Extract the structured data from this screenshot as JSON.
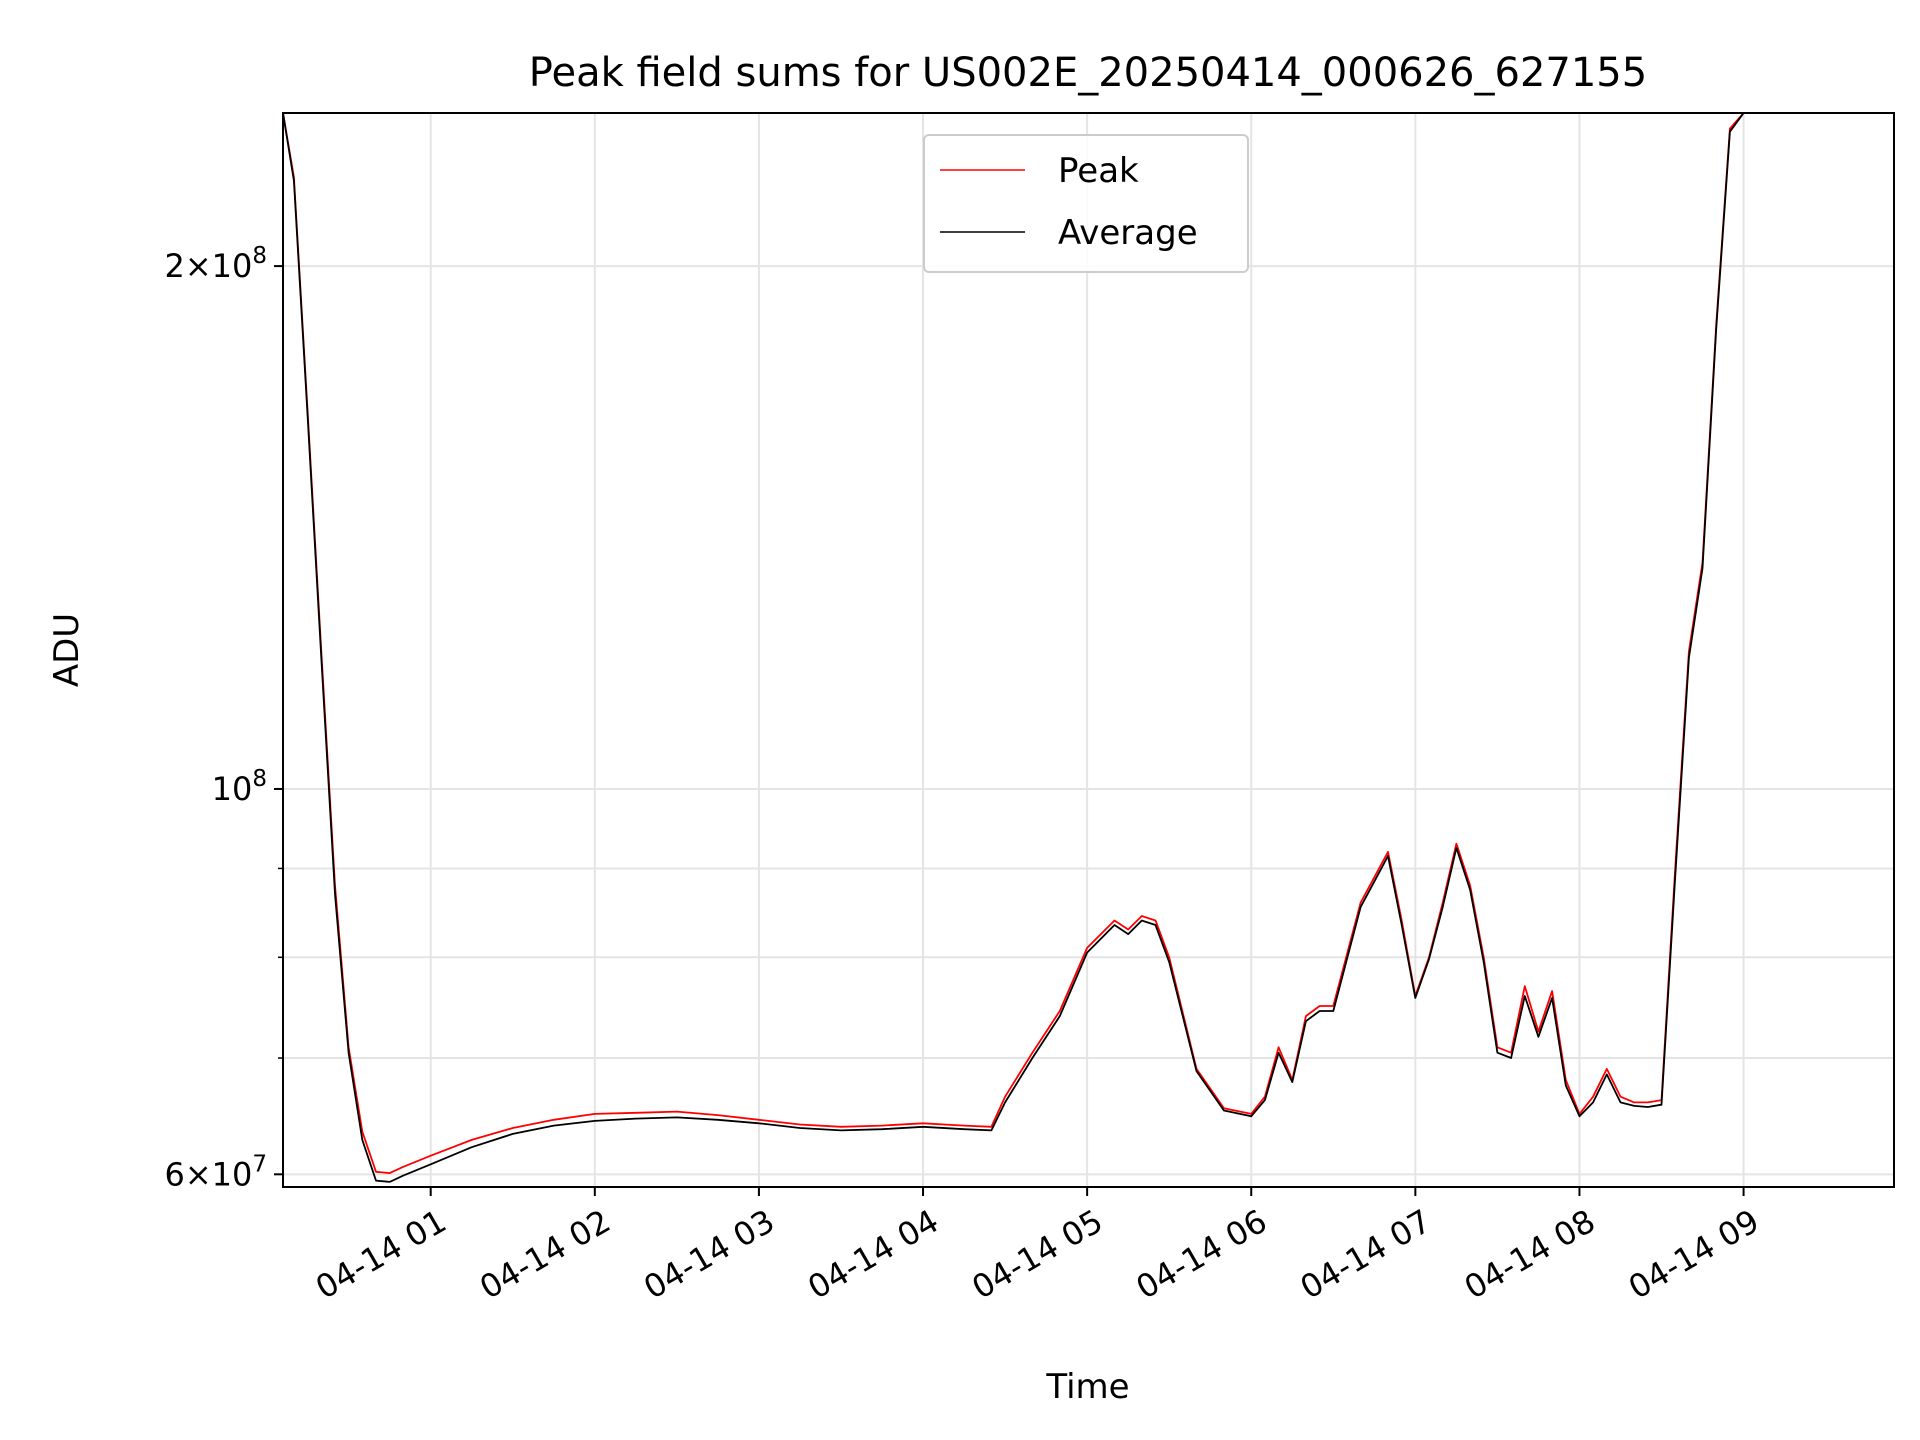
{
  "chart_data": {
    "type": "line",
    "title": "Peak field sums for US002E_20250414_000626_627155",
    "xlabel": "Time",
    "ylabel": "ADU",
    "x_range": [
      "2025-04-14T00:06",
      "2025-04-14T09:55"
    ],
    "ylim": [
      59000000,
      245000000
    ],
    "y_scale": "log",
    "grid": true,
    "legend": {
      "placement": "upper center",
      "entries": [
        "Peak",
        "Average"
      ]
    },
    "x_ticks": [
      {
        "t": "2025-04-14T01:00",
        "label": "04-14 01"
      },
      {
        "t": "2025-04-14T02:00",
        "label": "04-14 02"
      },
      {
        "t": "2025-04-14T03:00",
        "label": "04-14 03"
      },
      {
        "t": "2025-04-14T04:00",
        "label": "04-14 04"
      },
      {
        "t": "2025-04-14T05:00",
        "label": "04-14 05"
      },
      {
        "t": "2025-04-14T06:00",
        "label": "04-14 06"
      },
      {
        "t": "2025-04-14T07:00",
        "label": "04-14 07"
      },
      {
        "t": "2025-04-14T08:00",
        "label": "04-14 08"
      },
      {
        "t": "2025-04-14T09:00",
        "label": "04-14 09"
      }
    ],
    "y_ticks": [
      {
        "value": 60000000,
        "mantissa": "6",
        "exp": "7"
      },
      {
        "value": 100000000,
        "mantissa": "",
        "exp": "8"
      },
      {
        "value": 200000000,
        "mantissa": "2",
        "exp": "8"
      }
    ],
    "y_minor_ticks": [
      70000000,
      80000000,
      90000000
    ],
    "series": [
      {
        "name": "Peak",
        "color": "#ff0000",
        "x": [
          "00:06",
          "00:10",
          "00:15",
          "00:20",
          "00:25",
          "00:30",
          "00:35",
          "00:40",
          "00:45",
          "00:50",
          "01:00",
          "01:15",
          "01:30",
          "01:45",
          "02:00",
          "02:15",
          "02:30",
          "02:45",
          "03:00",
          "03:15",
          "03:30",
          "03:45",
          "04:00",
          "04:15",
          "04:25",
          "04:30",
          "04:40",
          "04:50",
          "05:00",
          "05:10",
          "05:15",
          "05:20",
          "05:25",
          "05:30",
          "05:40",
          "05:50",
          "06:00",
          "06:05",
          "06:10",
          "06:15",
          "06:20",
          "06:25",
          "06:30",
          "06:40",
          "06:50",
          "06:55",
          "07:00",
          "07:05",
          "07:10",
          "07:15",
          "07:20",
          "07:25",
          "07:30",
          "07:35",
          "07:40",
          "07:45",
          "07:50",
          "07:55",
          "08:00",
          "08:05",
          "08:10",
          "08:15",
          "08:20",
          "08:25",
          "08:30",
          "08:35",
          "08:40",
          "08:45",
          "08:50",
          "08:55",
          "09:00",
          "09:05",
          "09:10",
          "09:15",
          "09:20",
          "09:25",
          "09:30",
          "09:35",
          "09:40",
          "09:45",
          "09:50",
          "09:55"
        ],
        "values": [
          245000000,
          225000000,
          165000000,
          120000000,
          88000000,
          71000000,
          63500000,
          60200000,
          60100000,
          60600000,
          61500000,
          62800000,
          63800000,
          64500000,
          65000000,
          65100000,
          65200000,
          64900000,
          64500000,
          64100000,
          63900000,
          64000000,
          64200000,
          64000000,
          63900000,
          66500000,
          70500000,
          74500000,
          81000000,
          84000000,
          83000000,
          84500000,
          84000000,
          80000000,
          69000000,
          65500000,
          65000000,
          66500000,
          71000000,
          68000000,
          74000000,
          75000000,
          75000000,
          86000000,
          92000000,
          84000000,
          76000000,
          80000000,
          86000000,
          93000000,
          88000000,
          80000000,
          71000000,
          70500000,
          77000000,
          72500000,
          76500000,
          68000000,
          65000000,
          66500000,
          69000000,
          66500000,
          66000000,
          66000000,
          66200000,
          90000000,
          120000000,
          135000000,
          185000000,
          240000000,
          245000000,
          245000000,
          245000000,
          245000000,
          245000000,
          245000000,
          245000000,
          245000000,
          245000000,
          245000000,
          245000000,
          245000000
        ]
      },
      {
        "name": "Average",
        "color": "#000000",
        "x": [
          "00:06",
          "00:10",
          "00:15",
          "00:20",
          "00:25",
          "00:30",
          "00:35",
          "00:40",
          "00:45",
          "00:50",
          "01:00",
          "01:15",
          "01:30",
          "01:45",
          "02:00",
          "02:15",
          "02:30",
          "02:45",
          "03:00",
          "03:15",
          "03:30",
          "03:45",
          "04:00",
          "04:15",
          "04:25",
          "04:30",
          "04:40",
          "04:50",
          "05:00",
          "05:10",
          "05:15",
          "05:20",
          "05:25",
          "05:30",
          "05:40",
          "05:50",
          "06:00",
          "06:05",
          "06:10",
          "06:15",
          "06:20",
          "06:25",
          "06:30",
          "06:40",
          "06:50",
          "06:55",
          "07:00",
          "07:05",
          "07:10",
          "07:15",
          "07:20",
          "07:25",
          "07:30",
          "07:35",
          "07:40",
          "07:45",
          "07:50",
          "07:55",
          "08:00",
          "08:05",
          "08:10",
          "08:15",
          "08:20",
          "08:25",
          "08:30",
          "08:35",
          "08:40",
          "08:45",
          "08:50",
          "08:55",
          "09:00",
          "09:05",
          "09:10",
          "09:15",
          "09:20",
          "09:25",
          "09:30",
          "09:35",
          "09:40",
          "09:45",
          "09:50",
          "09:55"
        ],
        "values": [
          245000000,
          224000000,
          164000000,
          119000000,
          87000000,
          70500000,
          62800000,
          59500000,
          59400000,
          59900000,
          60800000,
          62200000,
          63300000,
          64000000,
          64400000,
          64600000,
          64700000,
          64500000,
          64200000,
          63800000,
          63600000,
          63700000,
          63900000,
          63700000,
          63600000,
          66000000,
          70000000,
          74000000,
          80500000,
          83500000,
          82500000,
          84000000,
          83500000,
          79500000,
          68800000,
          65300000,
          64800000,
          66200000,
          70500000,
          67800000,
          73500000,
          74500000,
          74500000,
          85500000,
          91500000,
          83500000,
          75800000,
          79800000,
          85500000,
          92500000,
          87500000,
          79500000,
          70500000,
          70000000,
          76000000,
          72000000,
          75800000,
          67500000,
          64800000,
          66000000,
          68500000,
          66000000,
          65700000,
          65600000,
          65800000,
          89000000,
          119000000,
          134000000,
          184000000,
          239000000,
          245000000,
          245000000,
          245000000,
          245000000,
          245000000,
          245000000,
          245000000,
          245000000,
          245000000,
          245000000,
          245000000,
          245000000
        ]
      }
    ]
  }
}
